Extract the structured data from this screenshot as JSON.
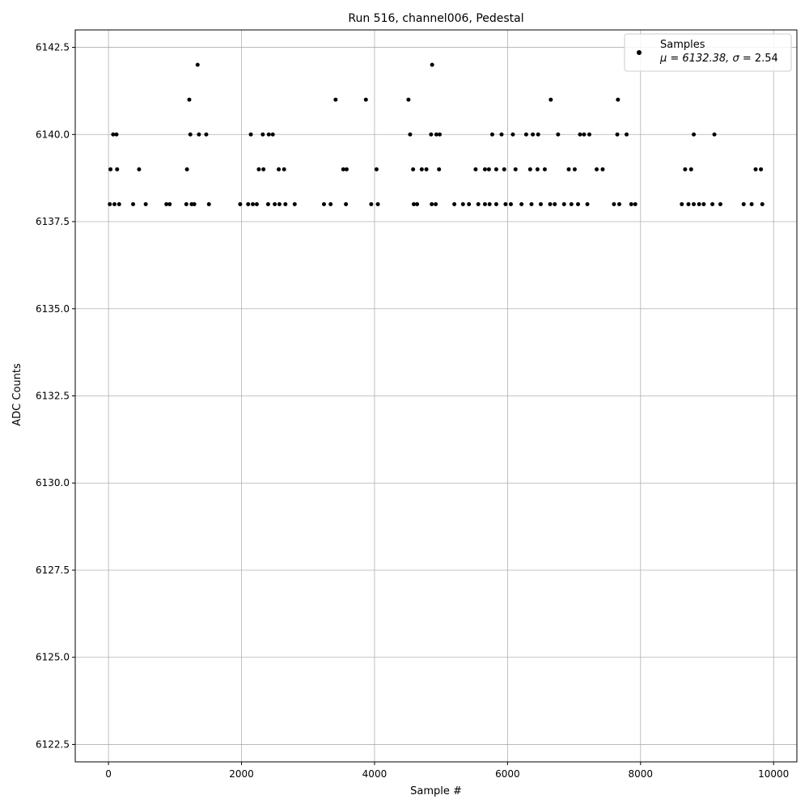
{
  "chart_data": {
    "type": "scatter",
    "title": "Run 516, channel006, Pedestal",
    "xlabel": "Sample #",
    "ylabel": "ADC Counts",
    "xlim": [
      -500,
      10350
    ],
    "ylim": [
      6122.0,
      6143.0
    ],
    "xticks": [
      0,
      2000,
      4000,
      6000,
      8000,
      10000
    ],
    "xtick_labels": [
      "0",
      "2000",
      "4000",
      "6000",
      "8000",
      "10000"
    ],
    "yticks": [
      6122.5,
      6125.0,
      6127.5,
      6130.0,
      6132.5,
      6135.0,
      6137.5,
      6140.0,
      6142.5
    ],
    "ytick_labels": [
      "6122.5",
      "6125.0",
      "6127.5",
      "6130.0",
      "6132.5",
      "6135.0",
      "6137.5",
      "6140.0",
      "6142.5"
    ],
    "grid": true,
    "legend_position": "top-right",
    "point_color": "#000000",
    "series": [
      {
        "name": "Samples",
        "legend_stats": [
          "μ = 6132.38, ",
          "σ",
          " = 2.54"
        ],
        "x": [
          1340,
          1215,
          3415,
          4510,
          3870,
          6650,
          7660,
          4866,
          70,
          120,
          1230,
          1360,
          1470,
          2140,
          2320,
          2410,
          2470,
          4535,
          4850,
          4930,
          4980,
          5770,
          5910,
          6080,
          6280,
          6380,
          6460,
          6760,
          7090,
          7150,
          7230,
          7650,
          7790,
          8800,
          9110,
          30,
          130,
          460,
          1180,
          2260,
          2330,
          2560,
          2640,
          3530,
          3580,
          4030,
          4580,
          4710,
          4780,
          4970,
          5520,
          5660,
          5720,
          5830,
          5950,
          6120,
          6340,
          6450,
          6560,
          6920,
          7010,
          7340,
          7430,
          8670,
          8760,
          9730,
          9810,
          20,
          90,
          160,
          370,
          560,
          870,
          920,
          1170,
          1250,
          1290,
          1510,
          1980,
          2100,
          2170,
          2230,
          2400,
          2500,
          2570,
          2660,
          2800,
          3240,
          3340,
          3570,
          3950,
          4050,
          4590,
          4640,
          4860,
          4920,
          5200,
          5330,
          5420,
          5560,
          5660,
          5730,
          5830,
          5970,
          6050,
          6210,
          6360,
          6500,
          6640,
          6710,
          6850,
          6960,
          7060,
          7200,
          7600,
          7680,
          7860,
          7920,
          8620,
          8720,
          8800,
          8880,
          8950,
          9080,
          9200,
          9550,
          9670,
          9830
        ],
        "y": [
          6142,
          6141,
          6141,
          6141,
          6141,
          6141,
          6141,
          6142,
          6140,
          6140,
          6140,
          6140,
          6140,
          6140,
          6140,
          6140,
          6140,
          6140,
          6140,
          6140,
          6140,
          6140,
          6140,
          6140,
          6140,
          6140,
          6140,
          6140,
          6140,
          6140,
          6140,
          6140,
          6140,
          6140,
          6140,
          6139,
          6139,
          6139,
          6139,
          6139,
          6139,
          6139,
          6139,
          6139,
          6139,
          6139,
          6139,
          6139,
          6139,
          6139,
          6139,
          6139,
          6139,
          6139,
          6139,
          6139,
          6139,
          6139,
          6139,
          6139,
          6139,
          6139,
          6139,
          6139,
          6139,
          6139,
          6139,
          6138,
          6138,
          6138,
          6138,
          6138,
          6138,
          6138,
          6138,
          6138,
          6138,
          6138,
          6138,
          6138,
          6138,
          6138,
          6138,
          6138,
          6138,
          6138,
          6138,
          6138,
          6138,
          6138,
          6138,
          6138,
          6138,
          6138,
          6138,
          6138,
          6138,
          6138,
          6138,
          6138,
          6138,
          6138,
          6138,
          6138,
          6138,
          6138,
          6138,
          6138,
          6138,
          6138,
          6138,
          6138,
          6138,
          6138,
          6138,
          6138,
          6138,
          6138,
          6138,
          6138,
          6138,
          6138,
          6138,
          6138,
          6138,
          6138,
          6138,
          6138
        ]
      }
    ]
  }
}
